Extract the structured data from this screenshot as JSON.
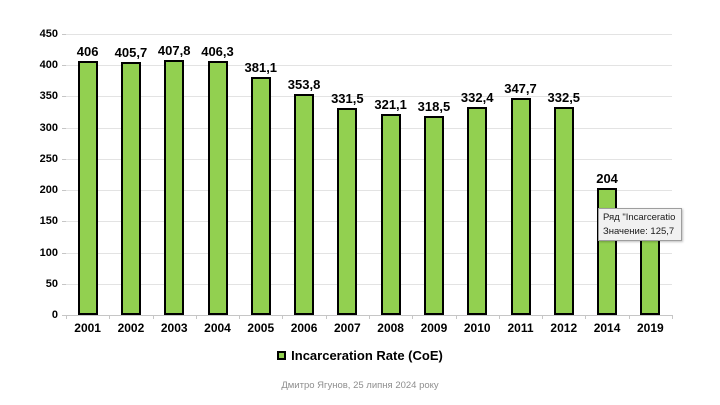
{
  "chart": {
    "legend_label": "Incarceration Rate (CoE)",
    "attribution": "Дмитро Ягунов, 25 липня 2024 року",
    "tooltip": {
      "line1": "Ряд \"Incarceratio",
      "line2": "Значение: 125,7"
    },
    "colors": {
      "bar_fill": "#92D050",
      "bar_border": "#000000",
      "gridline": "#e3e3e3",
      "axis_line": "#c6c6c6",
      "attribution_text": "#8e8e8e",
      "tooltip_bg": "#f1f1f1",
      "tooltip_border": "#9e9e9e"
    }
  },
  "chart_data": {
    "type": "bar",
    "title": "",
    "series_name": "Incarceration Rate (CoE)",
    "categories": [
      "2001",
      "2002",
      "2003",
      "2004",
      "2005",
      "2006",
      "2007",
      "2008",
      "2009",
      "2010",
      "2011",
      "2012",
      "2014",
      "2019"
    ],
    "values": [
      406,
      405.7,
      407.8,
      406.3,
      381.1,
      353.8,
      331.5,
      321.1,
      318.5,
      332.4,
      347.7,
      332.5,
      204,
      125.7
    ],
    "value_labels": [
      "406",
      "405,7",
      "407,8",
      "406,3",
      "381,1",
      "353,8",
      "331,5",
      "321,1",
      "318,5",
      "332,4",
      "347,7",
      "332,5",
      "204",
      ""
    ],
    "hidden_label_note": "2019 value label is covered by the tooltip; value 125,7 shown in tooltip",
    "xlabel": "",
    "ylabel": "",
    "ylim": [
      0,
      450
    ],
    "ytick_step": 50,
    "yticks": [
      450,
      400,
      350,
      300,
      250,
      200,
      150,
      100,
      50,
      0
    ],
    "grid": true,
    "legend_position": "bottom"
  }
}
